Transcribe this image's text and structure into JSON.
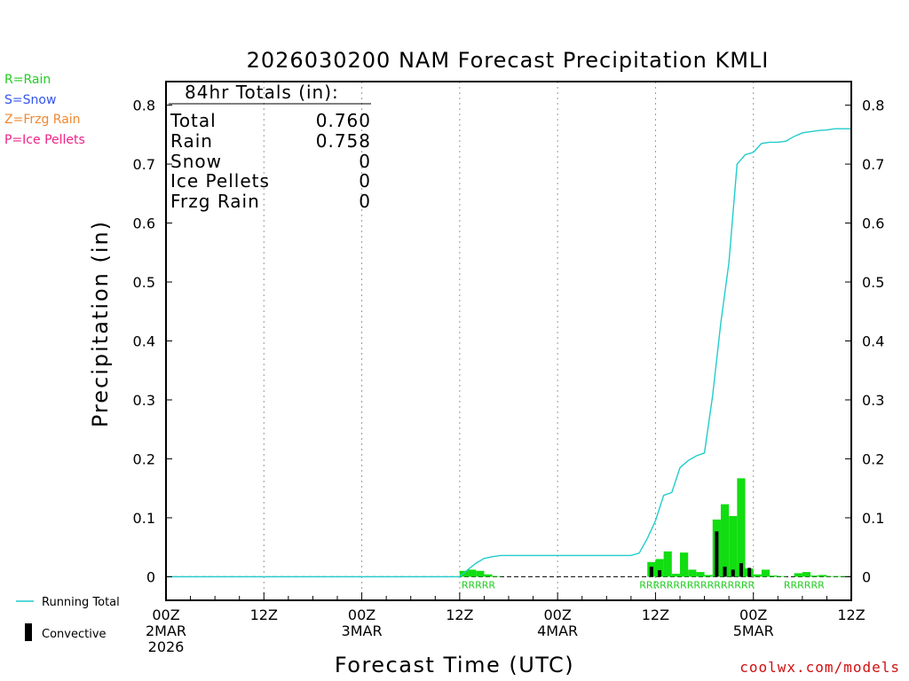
{
  "precip_type_legend": [
    {
      "label": "R=Rain",
      "color": "#22cc22"
    },
    {
      "label": "S=Snow",
      "color": "#3355ee"
    },
    {
      "label": "Z=Frzg Rain",
      "color": "#ee8833"
    },
    {
      "label": "P=Ice Pellets",
      "color": "#ee2288"
    }
  ],
  "totals_box": {
    "header": "84hr Totals (in):",
    "rows": [
      {
        "label": "Total",
        "value": "0.760"
      },
      {
        "label": "Rain",
        "value": "0.758"
      },
      {
        "label": "Snow",
        "value": "0"
      },
      {
        "label": "Ice Pellets",
        "value": "0"
      },
      {
        "label": "Frzg Rain",
        "value": "0"
      }
    ]
  },
  "series_legend": {
    "running_total_label": "Running Total",
    "convective_label": "Convective"
  },
  "credit": "coolwx.com/models",
  "colors": {
    "rain": "#11dd11",
    "convective": "#000000",
    "running_total": "#22cccc",
    "type_label": "#22cc22",
    "grid": "#999999"
  },
  "chart_data": {
    "type": "bar",
    "title": "2026030200 NAM Forecast Precipitation KMLI",
    "xlabel": "Forecast Time (UTC)",
    "ylabel": "Precipitation (in)",
    "xlim": [
      0,
      84
    ],
    "ylim": [
      -0.04,
      0.84
    ],
    "y_ticks": [
      0,
      0.1,
      0.2,
      0.3,
      0.4,
      0.5,
      0.6,
      0.7,
      0.8
    ],
    "y_tick_labels": [
      "0",
      "0.1",
      "0.2",
      "0.3",
      "0.4",
      "0.5",
      "0.6",
      "0.7",
      "0.8"
    ],
    "x_ticks": [
      {
        "hour": 0,
        "lines": [
          "00Z",
          "2MAR",
          "2026"
        ]
      },
      {
        "hour": 12,
        "lines": [
          "12Z"
        ]
      },
      {
        "hour": 24,
        "lines": [
          "00Z",
          "3MAR"
        ]
      },
      {
        "hour": 36,
        "lines": [
          "12Z"
        ]
      },
      {
        "hour": 48,
        "lines": [
          "00Z",
          "4MAR"
        ]
      },
      {
        "hour": 60,
        "lines": [
          "12Z"
        ]
      },
      {
        "hour": 72,
        "lines": [
          "00Z",
          "5MAR"
        ]
      },
      {
        "hour": 84,
        "lines": [
          "12Z"
        ]
      }
    ],
    "grid_x_hours": [
      12,
      24,
      36,
      48,
      60,
      72
    ],
    "bar_hours": [
      0.5,
      1.5,
      2.5,
      3.5,
      4.5,
      5.5,
      6.5,
      7.5,
      8.5,
      9.5,
      10.5,
      11.5,
      12.5,
      13.5,
      14.5,
      15.5,
      16.5,
      17.5,
      18.5,
      19.5,
      20.5,
      21.5,
      22.5,
      23.5,
      24.5,
      25.5,
      26.5,
      27.5,
      28.5,
      29.5,
      30.5,
      31.5,
      32.5,
      33.5,
      34.5,
      35.5,
      36.5,
      37.5,
      38.5,
      39.5,
      40.5,
      41.5,
      42.5,
      43.5,
      44.5,
      45.5,
      46.5,
      47.5,
      48.5,
      49.5,
      50.5,
      51.5,
      52.5,
      53.5,
      54.5,
      55.5,
      56.5,
      57.5,
      58.5,
      59.5,
      60.5,
      61.5,
      62.5,
      63.5,
      64.5,
      65.5,
      66.5,
      67.5,
      68.5,
      69.5,
      70.5,
      71.5,
      72.5,
      73.5,
      74.5,
      75.5,
      76.5,
      77.5,
      78.5,
      79.5,
      80.5,
      81.5,
      82.5,
      83.5
    ],
    "precip_values": [
      0,
      0,
      0,
      0,
      0,
      0,
      0,
      0,
      0,
      0,
      0,
      0,
      0,
      0,
      0,
      0,
      0,
      0,
      0,
      0,
      0,
      0,
      0,
      0,
      0,
      0,
      0,
      0,
      0,
      0,
      0,
      0,
      0,
      0,
      0,
      0,
      0.01,
      0.012,
      0.01,
      0.004,
      0.001,
      0,
      0,
      0,
      0,
      0,
      0,
      0,
      0,
      0,
      0,
      0,
      0,
      0,
      0,
      0,
      0,
      0,
      0,
      0.025,
      0.03,
      0.043,
      0.005,
      0.041,
      0.012,
      0.008,
      0.003,
      0.097,
      0.123,
      0.103,
      0.167,
      0.014,
      0.004,
      0.012,
      0.002,
      0.001,
      0,
      0.006,
      0.008,
      0.002,
      0.003,
      0.001,
      0.001,
      0.001
    ],
    "convective_values": [
      0,
      0,
      0,
      0,
      0,
      0,
      0,
      0,
      0,
      0,
      0,
      0,
      0,
      0,
      0,
      0,
      0,
      0,
      0,
      0,
      0,
      0,
      0,
      0,
      0,
      0,
      0,
      0,
      0,
      0,
      0,
      0,
      0,
      0,
      0,
      0,
      0,
      0,
      0,
      0,
      0,
      0,
      0,
      0,
      0,
      0,
      0,
      0,
      0,
      0,
      0,
      0,
      0,
      0,
      0,
      0,
      0,
      0,
      0,
      0.017,
      0.011,
      0,
      0,
      0,
      0,
      0,
      0,
      0.077,
      0.017,
      0.012,
      0.023,
      0.015,
      0,
      0,
      0,
      0,
      0,
      0,
      0,
      0,
      0,
      0,
      0,
      0
    ],
    "running_total": {
      "x": [
        0,
        36,
        37,
        38,
        39,
        40,
        41,
        42,
        48,
        57,
        58,
        59,
        60,
        61,
        62,
        63,
        64,
        65,
        66,
        67,
        68,
        69,
        70,
        71,
        72,
        73,
        74,
        75,
        76,
        77,
        78,
        80,
        81,
        82,
        84
      ],
      "y": [
        0,
        0,
        0.012,
        0.023,
        0.031,
        0.034,
        0.036,
        0.036,
        0.036,
        0.036,
        0.04,
        0.065,
        0.095,
        0.138,
        0.143,
        0.185,
        0.197,
        0.205,
        0.21,
        0.307,
        0.43,
        0.533,
        0.7,
        0.716,
        0.72,
        0.735,
        0.737,
        0.737,
        0.739,
        0.747,
        0.753,
        0.757,
        0.758,
        0.76,
        0.76
      ]
    },
    "type_labels": [
      {
        "start_hour": 36,
        "text": "RRRRR"
      },
      {
        "start_hour": 57.8,
        "text": "RRRRRRRRRRRRRRRRR"
      },
      {
        "start_hour": 75.5,
        "text": "RRRRRR"
      }
    ]
  }
}
